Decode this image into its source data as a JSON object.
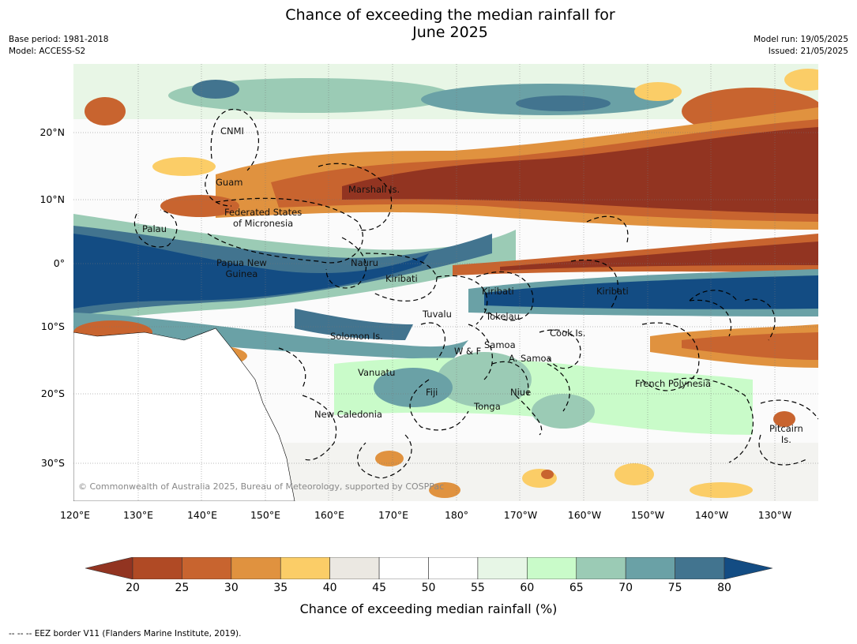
{
  "header": {
    "title_line1": "Chance of exceeding the median rainfall for",
    "title_line2": "June 2025",
    "base_period": "Base period: 1981-2018",
    "model": "Model: ACCESS-S2",
    "model_run": "Model run: 19/05/2025",
    "issued": "Issued: 21/05/2025"
  },
  "map": {
    "lat_labels": [
      "20°N",
      "10°N",
      "0°",
      "10°S",
      "20°S",
      "30°S"
    ],
    "lon_labels": [
      "120°E",
      "130°E",
      "140°E",
      "150°E",
      "160°E",
      "170°E",
      "180°",
      "170°W",
      "160°W",
      "150°W",
      "140°W",
      "130°W"
    ],
    "regions": {
      "cnmi": "CNMI",
      "guam": "Guam",
      "marshall": "Marshall Is.",
      "fsm_line1": "Federated States",
      "fsm_line2": "of Micronesia",
      "palau": "Palau",
      "png_line1": "Papua New",
      "png_line2": "Guinea",
      "nauru": "Nauru",
      "kiribati_w": "Kiribati",
      "kiribati_c": "Kiribati",
      "kiribati_e": "Kiribati",
      "tuvalu": "Tuvalu",
      "tokelau": "Tokelau",
      "cook": "Cook Is.",
      "solomon": "Solomon Is.",
      "wf": "W & F",
      "samoa": "Samoa",
      "am_samoa": "A. Samoa",
      "vanuatu": "Vanuatu",
      "fiji": "Fiji",
      "niue": "Niue",
      "french_polynesia": "French Polynesia",
      "tonga": "Tonga",
      "new_caledonia": "New Caledonia",
      "pitcairn_line1": "Pitcairn",
      "pitcairn_line2": "Is."
    },
    "copyright": "© Commonwealth of Australia 2025, Bureau of Meteorology, supported by COSPPac"
  },
  "colorbar": {
    "ticks": [
      "20",
      "25",
      "30",
      "35",
      "40",
      "45",
      "50",
      "55",
      "60",
      "65",
      "70",
      "75",
      "80"
    ],
    "colors": [
      "#b04a25",
      "#c8642f",
      "#e0923f",
      "#fbcd67",
      "#ebe8e2",
      "#ffffff",
      "#ffffff",
      "#e7f6e6",
      "#c9fbc9",
      "#9bcbb5",
      "#6aa1a6",
      "#42748f"
    ],
    "under_color": "#923421",
    "over_color": "#134c83",
    "label": "Chance of exceeding median rainfall (%)"
  },
  "footer": {
    "legend": "--  --  -- EEZ border V11 (Flanders Marine Institute, 2019)."
  }
}
